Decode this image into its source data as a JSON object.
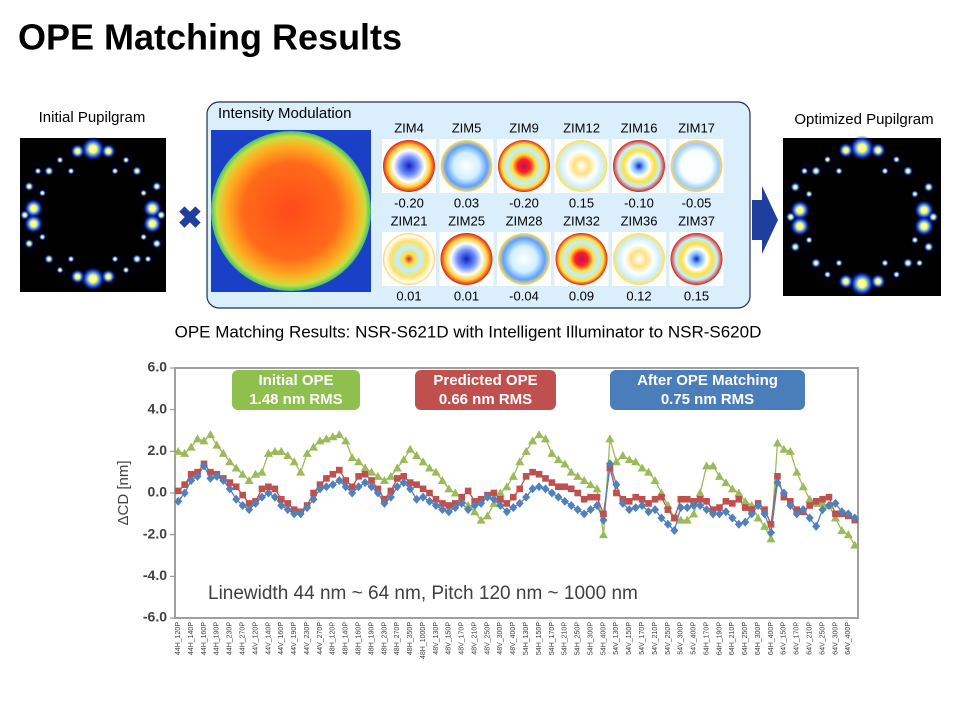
{
  "title": "OPE Matching Results",
  "left_label": "Initial Pupilgram",
  "right_label": "Optimized Pupilgram",
  "modulation": {
    "title": "Intensity Modulation",
    "terms": [
      {
        "name": "ZIM4",
        "value": "-0.20"
      },
      {
        "name": "ZIM5",
        "value": "0.03"
      },
      {
        "name": "ZIM9",
        "value": "-0.20"
      },
      {
        "name": "ZIM12",
        "value": "0.15"
      },
      {
        "name": "ZIM16",
        "value": "-0.10"
      },
      {
        "name": "ZIM17",
        "value": "-0.05"
      },
      {
        "name": "ZIM21",
        "value": "0.01"
      },
      {
        "name": "ZIM25",
        "value": "0.01"
      },
      {
        "name": "ZIM28",
        "value": "-0.04"
      },
      {
        "name": "ZIM32",
        "value": "0.09"
      },
      {
        "name": "ZIM36",
        "value": "0.12"
      },
      {
        "name": "ZIM37",
        "value": "0.15"
      }
    ]
  },
  "chart_data": {
    "type": "line",
    "title": "OPE Matching Results: NSR-S621D with Intelligent Illuminator to NSR-S620D",
    "ylabel": "ΔCD [nm]",
    "annotation": "Linewidth 44 nm ~ 64 nm, Pitch 120 nm ~ 1000 nm",
    "ylim": [
      -6,
      6
    ],
    "yticks": [
      {
        "value": -6,
        "label": "-6.0"
      },
      {
        "value": -4,
        "label": "-4.0"
      },
      {
        "value": -2,
        "label": "-2.0"
      },
      {
        "value": 0,
        "label": "0.0"
      },
      {
        "value": 2,
        "label": "2.0"
      },
      {
        "value": 4,
        "label": "4.0"
      },
      {
        "value": 6,
        "label": "6.0"
      }
    ],
    "categories": [
      "44H_120P",
      null,
      "44H_140P",
      null,
      "44H_160P",
      null,
      "44H_190P",
      null,
      "44H_230P",
      null,
      "44H_270P",
      null,
      "44V_120P",
      null,
      "44V_140P",
      null,
      "44V_160P",
      null,
      "44V_190P",
      null,
      "44V_230P",
      null,
      "44V_270P",
      null,
      "48H_120P",
      null,
      "48H_140P",
      null,
      "48H_160P",
      null,
      "48H_190P",
      null,
      "48H_230P",
      null,
      "48H_270P",
      null,
      "48H_350P",
      null,
      "48H_1000P",
      null,
      "48V_130P",
      null,
      "48V_150P",
      null,
      "48V_170P",
      null,
      "48V_210P",
      null,
      "48V_250P",
      null,
      "48V_300P",
      null,
      "48V_400P",
      null,
      "54H_130P",
      null,
      "54H_150P",
      null,
      "54H_170P",
      null,
      "54H_210P",
      null,
      "54H_250P",
      null,
      "54H_300P",
      null,
      "54H_400P",
      null,
      "54V_130P",
      null,
      "54V_150P",
      null,
      "54V_170P",
      null,
      "54V_210P",
      null,
      "54V_250P",
      null,
      "54V_300P",
      null,
      "54V_400P",
      null,
      "64H_170P",
      null,
      "64H_190P",
      null,
      "64H_210P",
      null,
      "64H_250P",
      null,
      "64H_300P",
      null,
      "64H_400P",
      null,
      "64V_150P",
      null,
      "64V_170P",
      null,
      "64V_210P",
      null,
      "64V_250P",
      null,
      "64V_300P",
      null,
      "64V_400P",
      null
    ],
    "series": [
      {
        "name": "Initial OPE",
        "rms": "1.48 nm RMS",
        "color": "#9bbb59",
        "legend_color": "#8fbf4d",
        "marker": "triangle",
        "values": [
          2.0,
          1.9,
          2.2,
          2.6,
          2.5,
          2.8,
          2.3,
          1.9,
          1.5,
          1.2,
          0.9,
          0.6,
          0.9,
          1.0,
          1.9,
          2.0,
          2.0,
          1.8,
          1.5,
          1.0,
          1.9,
          2.2,
          2.5,
          2.6,
          2.7,
          2.8,
          2.5,
          1.7,
          1.5,
          1.2,
          1.0,
          0.8,
          0.6,
          0.8,
          1.2,
          1.6,
          2.1,
          1.8,
          1.5,
          1.2,
          1.0,
          0.6,
          0.2,
          0.0,
          -0.3,
          -0.6,
          -0.9,
          -1.3,
          -1.1,
          -0.5,
          0.0,
          0.3,
          0.8,
          1.5,
          2.0,
          2.5,
          2.8,
          2.6,
          1.9,
          1.6,
          1.4,
          1.0,
          0.8,
          0.6,
          0.4,
          0.2,
          -2.0,
          2.6,
          1.5,
          1.8,
          1.6,
          1.5,
          1.2,
          1.0,
          0.6,
          0.0,
          -0.6,
          -1.2,
          -1.3,
          -1.3,
          -1.0,
          0.0,
          1.3,
          1.3,
          0.8,
          0.5,
          0.2,
          0.0,
          -0.4,
          -0.6,
          -1.2,
          -1.6,
          -2.2,
          2.4,
          2.1,
          2.0,
          1.0,
          0.3,
          -0.3,
          -0.5,
          -0.5,
          -0.6,
          -1.2,
          -1.8,
          -2.0,
          -2.5
        ]
      },
      {
        "name": "Predicted OPE",
        "rms": "0.66 nm RMS",
        "color": "#c0504d",
        "legend_color": "#c0504d",
        "marker": "square",
        "values": [
          0.1,
          0.4,
          0.9,
          1.0,
          1.4,
          1.0,
          0.9,
          0.7,
          0.5,
          0.3,
          -0.1,
          -0.5,
          -0.4,
          0.2,
          0.3,
          0.2,
          -0.3,
          -0.5,
          -0.8,
          -0.9,
          -0.6,
          0.0,
          0.4,
          0.7,
          0.9,
          1.1,
          0.6,
          0.3,
          0.8,
          0.9,
          0.6,
          0.2,
          -0.3,
          0.1,
          0.7,
          0.8,
          0.5,
          0.4,
          0.2,
          0.0,
          -0.3,
          -0.5,
          -0.6,
          -0.5,
          -0.2,
          0.1,
          -0.4,
          -0.3,
          -0.1,
          0.0,
          -0.3,
          -0.5,
          -0.2,
          0.2,
          0.8,
          1.0,
          0.9,
          0.7,
          0.5,
          0.3,
          0.3,
          0.2,
          0.0,
          -0.3,
          -0.2,
          -0.2,
          -1.0,
          1.2,
          0.0,
          -0.3,
          -0.4,
          -0.2,
          -0.3,
          -0.5,
          -0.3,
          -0.2,
          -0.8,
          -1.2,
          -0.3,
          -0.3,
          -0.4,
          -0.3,
          -0.4,
          -0.8,
          -0.7,
          -0.4,
          -0.5,
          -0.3,
          -0.7,
          -0.8,
          -0.5,
          -0.8,
          -1.5,
          0.8,
          -0.2,
          -0.4,
          -0.8,
          -0.9,
          -0.6,
          -0.4,
          -0.3,
          -0.2,
          -1.0,
          -1.0,
          -1.1,
          -1.3
        ]
      },
      {
        "name": "After OPE Matching",
        "rms": "0.75 nm RMS",
        "color": "#4f81bd",
        "legend_color": "#4a7ebb",
        "marker": "diamond",
        "values": [
          -0.4,
          0.0,
          0.6,
          0.8,
          1.3,
          0.7,
          0.8,
          0.6,
          0.2,
          -0.3,
          -0.6,
          -0.8,
          -0.5,
          -0.2,
          0.0,
          -0.2,
          -0.6,
          -0.8,
          -1.0,
          -1.0,
          -0.7,
          -0.3,
          0.2,
          0.3,
          0.4,
          0.6,
          0.3,
          0.0,
          0.3,
          0.5,
          0.3,
          0.0,
          -0.5,
          -0.2,
          0.3,
          0.5,
          0.2,
          -0.3,
          -0.2,
          -0.4,
          -0.6,
          -0.8,
          -0.9,
          -0.7,
          -0.5,
          -0.8,
          -0.6,
          -0.5,
          -0.2,
          -0.3,
          -0.6,
          -0.9,
          -0.7,
          -0.5,
          -0.2,
          0.2,
          0.3,
          0.2,
          0.0,
          -0.2,
          -0.4,
          -0.6,
          -0.8,
          -1.0,
          -0.8,
          -0.6,
          -1.3,
          1.4,
          0.4,
          -0.5,
          -0.8,
          -0.7,
          -0.6,
          -0.9,
          -0.8,
          -1.2,
          -1.5,
          -1.8,
          -0.7,
          -0.7,
          -0.6,
          -0.6,
          -0.8,
          -1.0,
          -1.0,
          -0.9,
          -1.2,
          -1.5,
          -1.4,
          -1.0,
          -0.6,
          -1.0,
          -1.9,
          0.5,
          0.0,
          -0.6,
          -1.0,
          -0.8,
          -1.2,
          -1.6,
          -0.8,
          -0.6,
          -0.5,
          -0.9,
          -1.0,
          -1.2
        ]
      }
    ]
  }
}
